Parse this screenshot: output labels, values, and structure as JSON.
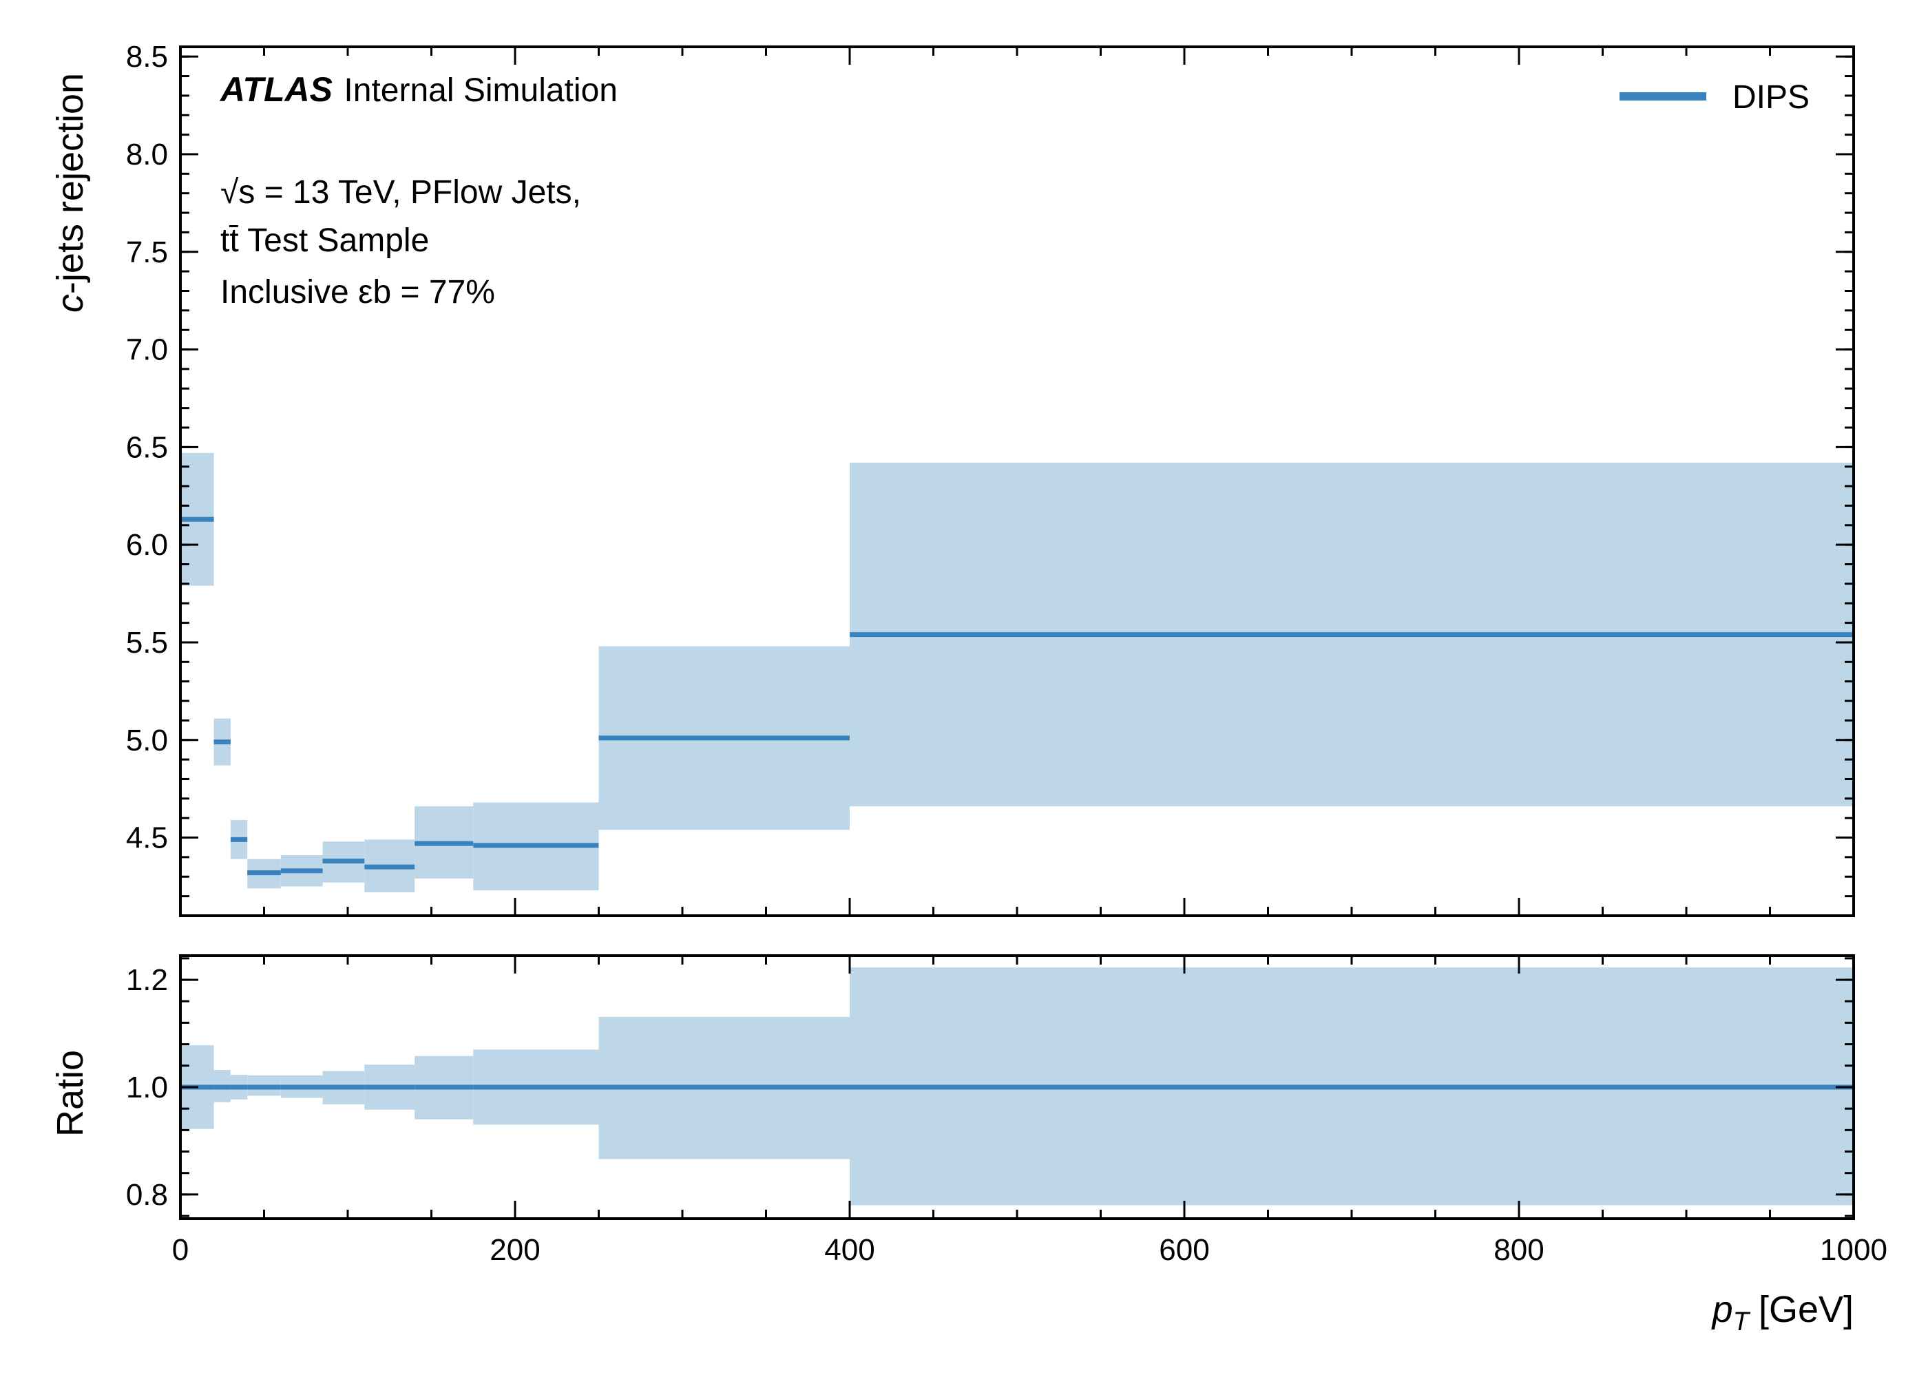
{
  "chart_data": {
    "type": "step",
    "experiment": "ATLAS",
    "experiment_label": "Internal Simulation",
    "annotations": [
      "√s = 13 TeV, PFlow Jets,",
      "tt̄ Test Sample",
      "Inclusive εb = 77%"
    ],
    "legend": {
      "placement": "top-right",
      "entries": [
        "DIPS"
      ]
    },
    "colors": {
      "line": "#3a82bd",
      "band": "#bdd7e8"
    },
    "x": {
      "label": "p_T [GeV]",
      "label_main": "p",
      "label_sub": "T",
      "label_unit": "[GeV]",
      "lim": [
        0,
        1000
      ],
      "ticks": [
        0,
        200,
        400,
        600,
        800,
        1000
      ],
      "tick_labels": [
        "0",
        "200",
        "400",
        "600",
        "800",
        "1000"
      ]
    },
    "bins": [
      [
        0,
        20
      ],
      [
        20,
        30
      ],
      [
        30,
        40
      ],
      [
        40,
        60
      ],
      [
        60,
        85
      ],
      [
        85,
        110
      ],
      [
        110,
        140
      ],
      [
        140,
        175
      ],
      [
        175,
        250
      ],
      [
        250,
        400
      ],
      [
        400,
        1000
      ]
    ],
    "top": {
      "ylabel": "c-jets rejection",
      "ylabel_italic": "c",
      "ylabel_rest": "-jets rejection",
      "ylim": [
        4.1,
        8.55
      ],
      "yticks": [
        4.5,
        5.0,
        5.5,
        6.0,
        6.5,
        7.0,
        7.5,
        8.0,
        8.5
      ],
      "ytick_labels": [
        "4.5",
        "5.0",
        "5.5",
        "6.0",
        "6.5",
        "7.0",
        "7.5",
        "8.0",
        "8.5"
      ],
      "series": [
        {
          "name": "DIPS",
          "values": [
            6.13,
            4.99,
            4.49,
            4.32,
            4.33,
            4.38,
            4.35,
            4.47,
            4.46,
            5.01,
            5.54
          ],
          "err_low": [
            5.79,
            4.87,
            4.39,
            4.24,
            4.25,
            4.27,
            4.22,
            4.29,
            4.23,
            4.54,
            4.66
          ],
          "err_high": [
            6.47,
            5.11,
            4.59,
            4.39,
            4.41,
            4.48,
            4.49,
            4.66,
            4.68,
            5.48,
            6.42
          ]
        }
      ]
    },
    "bottom": {
      "ylabel": "Ratio",
      "ylim": [
        0.755,
        1.245
      ],
      "yticks": [
        0.8,
        1.0,
        1.2
      ],
      "ytick_labels": [
        "0.8",
        "1.0",
        "1.2"
      ],
      "series": [
        {
          "name": "DIPS",
          "values": [
            1.0,
            1.0,
            1.0,
            1.0,
            1.0,
            1.0,
            1.0,
            1.0,
            1.0,
            1.0,
            1.0
          ],
          "err_low": [
            0.922,
            0.972,
            0.977,
            0.984,
            0.98,
            0.968,
            0.958,
            0.94,
            0.93,
            0.866,
            0.78
          ],
          "err_high": [
            1.078,
            1.032,
            1.023,
            1.022,
            1.022,
            1.03,
            1.042,
            1.058,
            1.07,
            1.131,
            1.223
          ]
        }
      ]
    }
  }
}
